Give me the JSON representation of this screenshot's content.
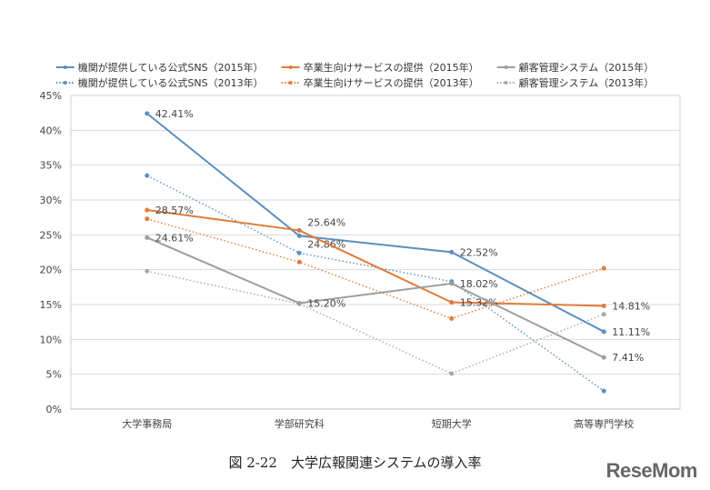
{
  "chart_data": {
    "type": "line",
    "title": "",
    "xlabel": "",
    "ylabel": "",
    "categories": [
      "大学事務局",
      "学部研究科",
      "短期大学",
      "高等専門学校"
    ],
    "ylim": [
      0,
      45
    ],
    "yticks": [
      "0%",
      "5%",
      "10%",
      "15%",
      "20%",
      "25%",
      "30%",
      "35%",
      "40%",
      "45%"
    ],
    "grid": true,
    "legend_position": "top",
    "series": [
      {
        "name": "機関が提供している公式SNS（2015年）",
        "color": "#5b8fc0",
        "dashed": false,
        "values": [
          42.41,
          24.86,
          22.52,
          11.11
        ],
        "labels": [
          "42.41%",
          "24.86%",
          "22.52%",
          "11.11%"
        ]
      },
      {
        "name": "卒業生向けサービスの提供（2015年）",
        "color": "#e07b39",
        "dashed": false,
        "values": [
          28.57,
          25.64,
          15.32,
          14.81
        ],
        "labels": [
          "28.57%",
          "25.64%",
          "15.32%",
          "14.81%"
        ]
      },
      {
        "name": "顧客管理システム（2015年）",
        "color": "#9e9e9e",
        "dashed": false,
        "values": [
          24.61,
          15.2,
          18.02,
          7.41
        ],
        "labels": [
          "24.61%",
          "15.20%",
          "18.02%",
          "7.41%"
        ]
      },
      {
        "name": "機関が提供している公式SNS（2013年）",
        "color": "#5b8fc0",
        "dashed": true,
        "values": [
          33.5,
          22.4,
          18.3,
          2.6
        ]
      },
      {
        "name": "卒業生向けサービスの提供（2013年）",
        "color": "#e07b39",
        "dashed": true,
        "values": [
          27.3,
          21.1,
          13.0,
          20.2
        ]
      },
      {
        "name": "顧客管理システム（2013年）",
        "color": "#a8a8a8",
        "dashed": true,
        "values": [
          19.8,
          15.1,
          5.1,
          13.6
        ]
      }
    ]
  },
  "caption": "図 2-22　大学広報関連システムの導入率",
  "logo": "ReseMom"
}
